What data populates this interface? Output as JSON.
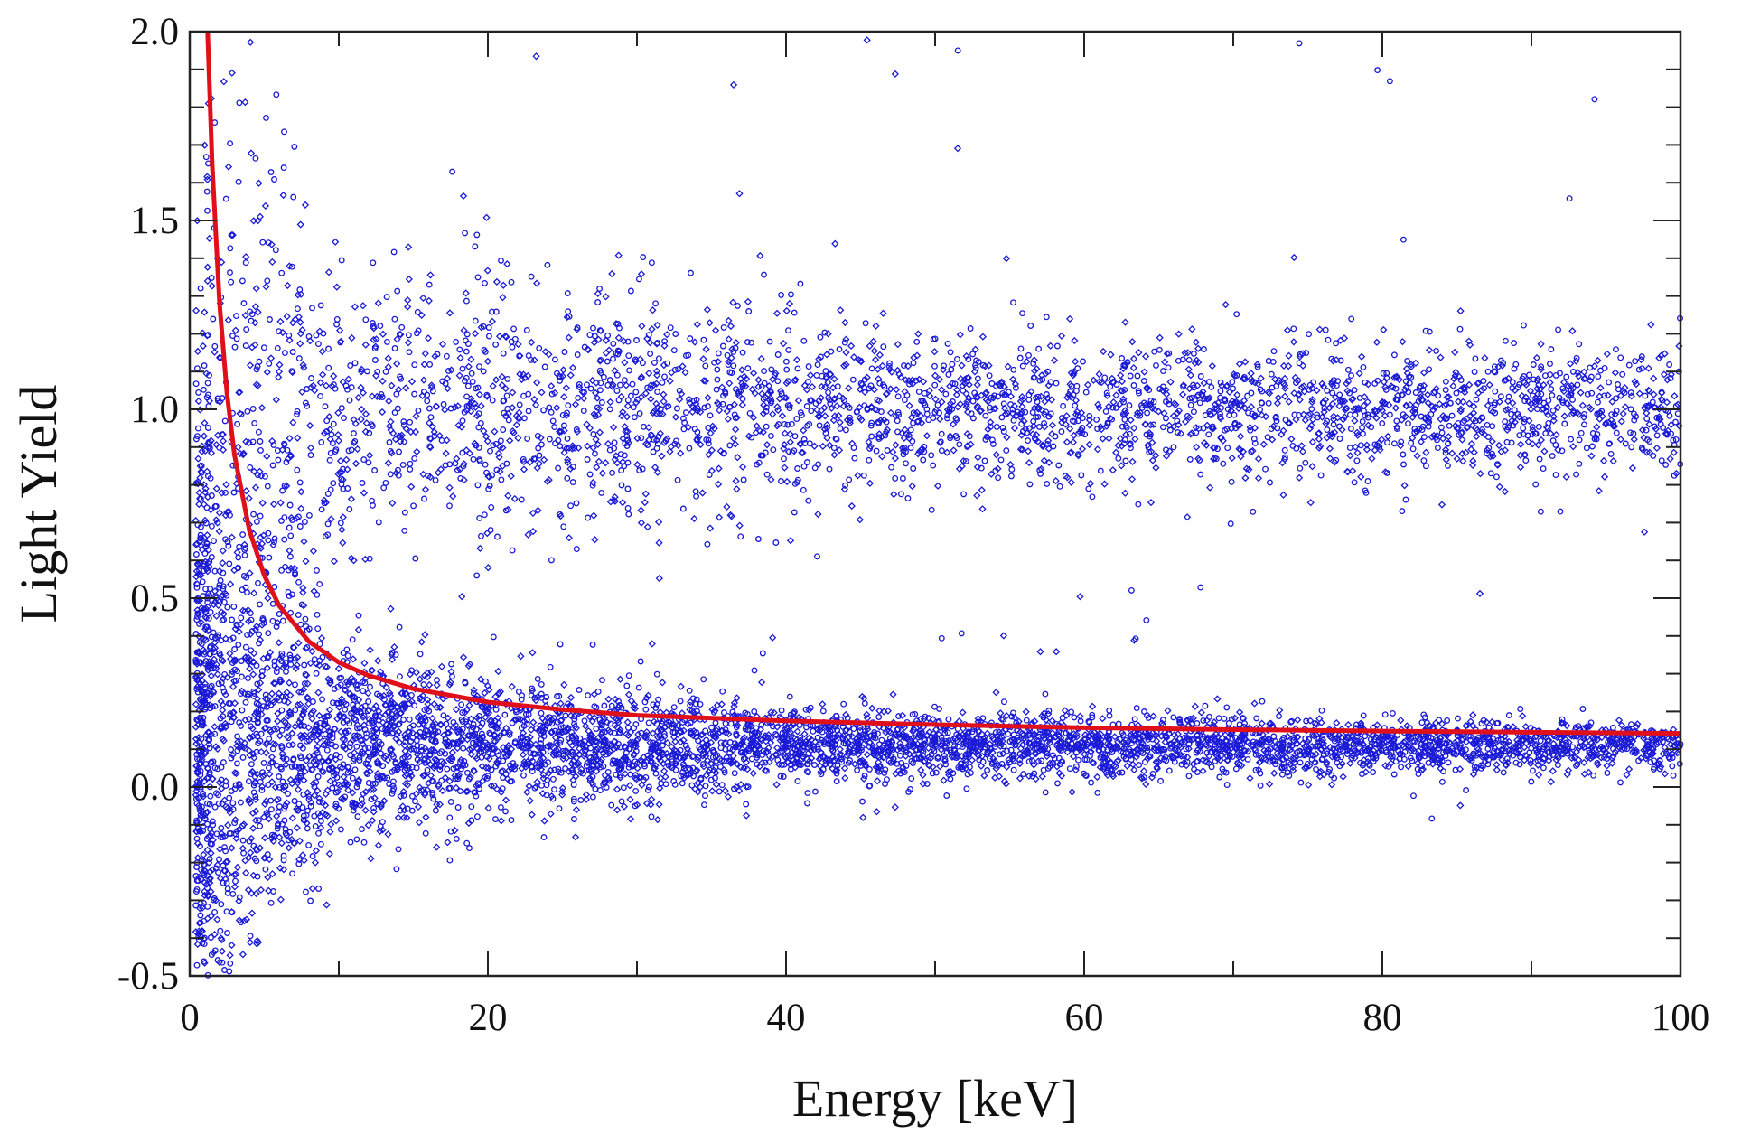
{
  "chart_data": {
    "type": "scatter",
    "title": "",
    "xlabel": "Energy [keV]",
    "ylabel": "Light Yield",
    "xlim": [
      0,
      100
    ],
    "ylim": [
      -0.5,
      2.0
    ],
    "x_ticks": [
      0,
      20,
      40,
      60,
      80,
      100
    ],
    "x_tick_labels": [
      "0",
      "20",
      "40",
      "60",
      "80",
      "100"
    ],
    "y_ticks": [
      -0.5,
      0.0,
      0.5,
      1.0,
      1.5,
      2.0
    ],
    "y_tick_labels": [
      "-0.5",
      "0.0",
      "0.5",
      "1.0",
      "1.5",
      "2.0"
    ],
    "grid": false,
    "legend": "none",
    "colors": {
      "points": "#1a1ad6",
      "curve": "#e0101a",
      "axes": "#222222"
    },
    "series": [
      {
        "kind": "scatter",
        "marker": "open-circle/diamond",
        "bands": [
          {
            "label_on_chart": "",
            "center": [
              [
                1,
                1.05
              ],
              [
                10,
                1.0
              ],
              [
                40,
                1.0
              ],
              [
                60,
                1.0
              ],
              [
                100,
                1.0
              ]
            ],
            "spread": [
              [
                1,
                0.5
              ],
              [
                10,
                0.2
              ],
              [
                50,
                0.1
              ],
              [
                100,
                0.08
              ]
            ]
          },
          {
            "label_on_chart": "",
            "center": [
              [
                1,
                0.15
              ],
              [
                10,
                0.12
              ],
              [
                40,
                0.11
              ],
              [
                100,
                0.11
              ]
            ],
            "spread": [
              [
                1,
                0.45
              ],
              [
                10,
                0.12
              ],
              [
                40,
                0.05
              ],
              [
                100,
                0.03
              ]
            ]
          }
        ]
      },
      {
        "kind": "line",
        "x": [
          1.2,
          1.5,
          2,
          2.5,
          3,
          4,
          5,
          6,
          8,
          10,
          12,
          15,
          20,
          25,
          30,
          40,
          50,
          60,
          70,
          80,
          90,
          100
        ],
        "y": [
          2.0,
          1.65,
          1.28,
          1.04,
          0.88,
          0.68,
          0.56,
          0.48,
          0.385,
          0.33,
          0.295,
          0.26,
          0.225,
          0.205,
          0.19,
          0.175,
          0.165,
          0.157,
          0.152,
          0.148,
          0.145,
          0.142
        ]
      }
    ]
  }
}
